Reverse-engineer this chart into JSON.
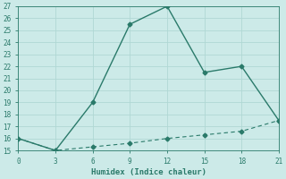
{
  "line1_x": [
    0,
    3,
    6,
    9,
    12,
    15,
    18,
    21
  ],
  "line1_y": [
    16,
    15,
    19,
    25.5,
    27,
    21.5,
    22,
    17.5
  ],
  "line2_x": [
    0,
    3,
    6,
    9,
    12,
    15,
    18,
    21
  ],
  "line2_y": [
    16,
    15,
    15.3,
    15.6,
    16.0,
    16.3,
    16.6,
    17.5
  ],
  "line_color": "#2a7a6a",
  "bg_color": "#cceae8",
  "grid_color": "#b0d8d4",
  "xlabel": "Humidex (Indice chaleur)",
  "xlim": [
    0,
    21
  ],
  "ylim": [
    15,
    27
  ],
  "xticks": [
    0,
    3,
    6,
    9,
    12,
    15,
    18,
    21
  ],
  "yticks": [
    15,
    16,
    17,
    18,
    19,
    20,
    21,
    22,
    23,
    24,
    25,
    26,
    27
  ],
  "marker": "D",
  "markersize": 2.5,
  "linewidth1": 1.0,
  "linewidth2": 0.8
}
